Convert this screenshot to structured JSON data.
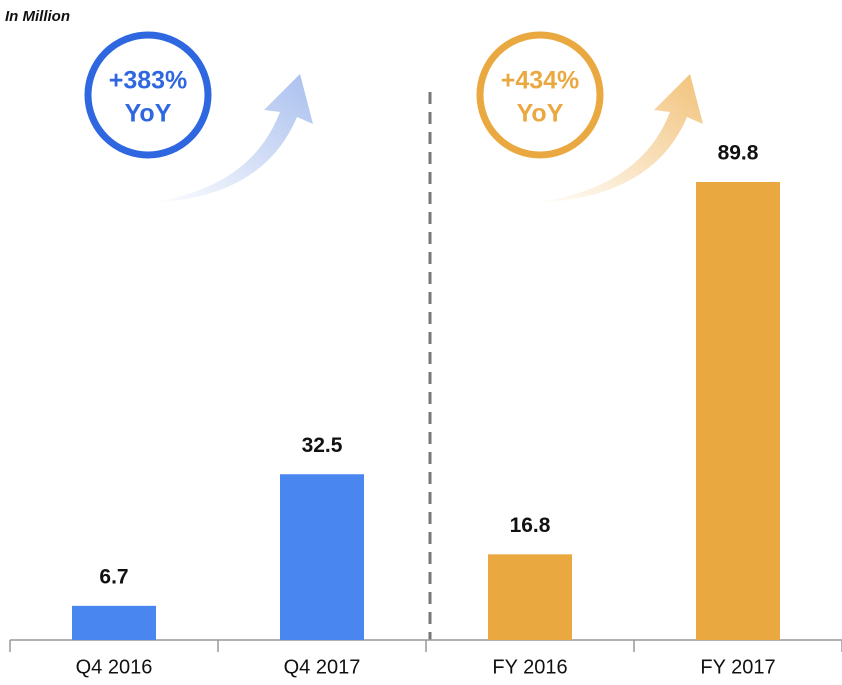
{
  "chart_data": {
    "type": "bar",
    "subtitle": "In Million",
    "categories": [
      "Q4 2016",
      "Q4 2017",
      "FY 2016",
      "FY 2017"
    ],
    "values": [
      6.7,
      32.5,
      16.8,
      89.8
    ],
    "colors": [
      "#4a86f0",
      "#4a86f0",
      "#eaa940",
      "#eaa940"
    ],
    "annotations": [
      {
        "text": "+383%",
        "color": "#2f67e0"
      },
      {
        "text": "YoY",
        "color": "#2f67e0"
      },
      {
        "text": "+434%",
        "color": "#eaa940"
      },
      {
        "text": "YoY",
        "color": "#eaa940"
      }
    ]
  }
}
